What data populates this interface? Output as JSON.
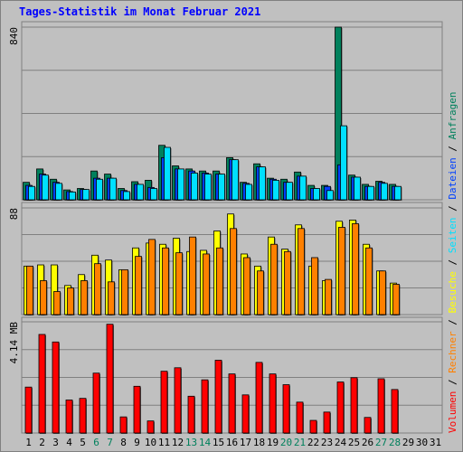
{
  "title": "Tages-Statistik im Monat Februar 2021",
  "legend": {
    "volumen": "Volumen",
    "rechner": "Rechner",
    "besuche": "Besuche",
    "seiten": "Seiten",
    "dateien": "Dateien",
    "anfragen": "Anfragen",
    "sep": " / "
  },
  "colors": {
    "anfragen": "#00805c",
    "dateien": "#0040ff",
    "seiten": "#00e0ff",
    "besuche": "#ffff00",
    "rechner": "#ff8000",
    "volumen": "#ff0000",
    "weekday": "#000000",
    "weekend": "#00805c",
    "panel": "#c0c0c0",
    "title": "#0000ff"
  },
  "chart_data": [
    {
      "type": "bar",
      "panel": "top",
      "ymax_label": "840",
      "ylim": [
        0,
        840
      ],
      "categories": [
        "1",
        "2",
        "3",
        "4",
        "5",
        "6",
        "7",
        "8",
        "9",
        "10",
        "11",
        "12",
        "13",
        "14",
        "15",
        "16",
        "17",
        "18",
        "19",
        "20",
        "21",
        "22",
        "23",
        "24",
        "25",
        "26",
        "27",
        "28",
        "29",
        "30",
        "31"
      ],
      "weekend_days": [
        "6",
        "7",
        "13",
        "14",
        "20",
        "21",
        "27",
        "28"
      ],
      "series": [
        {
          "name": "Anfragen",
          "values": [
            85,
            150,
            100,
            48,
            55,
            140,
            125,
            55,
            88,
            95,
            265,
            165,
            150,
            140,
            140,
            205,
            85,
            175,
            105,
            100,
            135,
            70,
            70,
            840,
            120,
            75,
            90,
            75,
            0,
            0,
            0
          ]
        },
        {
          "name": "Dateien",
          "values": [
            70,
            125,
            85,
            40,
            50,
            105,
            105,
            45,
            75,
            60,
            205,
            150,
            140,
            130,
            125,
            195,
            80,
            160,
            100,
            85,
            115,
            55,
            65,
            170,
            110,
            65,
            85,
            65,
            0,
            0,
            0
          ]
        },
        {
          "name": "Seiten",
          "values": [
            65,
            120,
            80,
            38,
            50,
            100,
            105,
            40,
            75,
            55,
            255,
            150,
            130,
            125,
            125,
            195,
            75,
            160,
            95,
            85,
            115,
            55,
            45,
            360,
            110,
            65,
            80,
            65,
            0,
            0,
            0
          ]
        }
      ]
    },
    {
      "type": "bar",
      "panel": "middle",
      "ymax_label": "88",
      "ylim": [
        0,
        88
      ],
      "categories": [
        "1",
        "2",
        "3",
        "4",
        "5",
        "6",
        "7",
        "8",
        "9",
        "10",
        "11",
        "12",
        "13",
        "14",
        "15",
        "16",
        "17",
        "18",
        "19",
        "20",
        "21",
        "22",
        "23",
        "24",
        "25",
        "26",
        "27",
        "28",
        "29",
        "30",
        "31"
      ],
      "series": [
        {
          "name": "Besuche",
          "values": [
            40,
            41,
            41,
            24,
            33,
            49,
            45,
            37,
            55,
            59,
            58,
            63,
            52,
            53,
            69,
            83,
            50,
            40,
            64,
            54,
            74,
            40,
            28,
            77,
            78,
            58,
            36,
            26,
            0,
            0,
            0
          ]
        },
        {
          "name": "Rechner",
          "values": [
            40,
            28,
            19,
            22,
            28,
            42,
            27,
            37,
            48,
            62,
            55,
            51,
            64,
            50,
            55,
            71,
            47,
            36,
            58,
            52,
            71,
            47,
            29,
            72,
            75,
            55,
            36,
            25,
            0,
            0,
            0
          ]
        }
      ]
    },
    {
      "type": "bar",
      "panel": "bottom",
      "ymax_label": "4.14 MB",
      "ylim": [
        0,
        4.14
      ],
      "unit": "MB",
      "categories": [
        "1",
        "2",
        "3",
        "4",
        "5",
        "6",
        "7",
        "8",
        "9",
        "10",
        "11",
        "12",
        "13",
        "14",
        "15",
        "16",
        "17",
        "18",
        "19",
        "20",
        "21",
        "22",
        "23",
        "24",
        "25",
        "26",
        "27",
        "28",
        "29",
        "30",
        "31"
      ],
      "series": [
        {
          "name": "Volumen",
          "values": [
            1.71,
            3.67,
            3.39,
            1.23,
            1.29,
            2.23,
            4.05,
            0.6,
            1.74,
            0.45,
            2.3,
            2.43,
            1.37,
            1.98,
            2.71,
            2.2,
            1.42,
            2.63,
            2.2,
            1.8,
            1.15,
            0.47,
            0.78,
            1.9,
            2.06,
            0.58,
            2.02,
            1.62,
            0,
            0,
            0
          ]
        }
      ]
    }
  ]
}
